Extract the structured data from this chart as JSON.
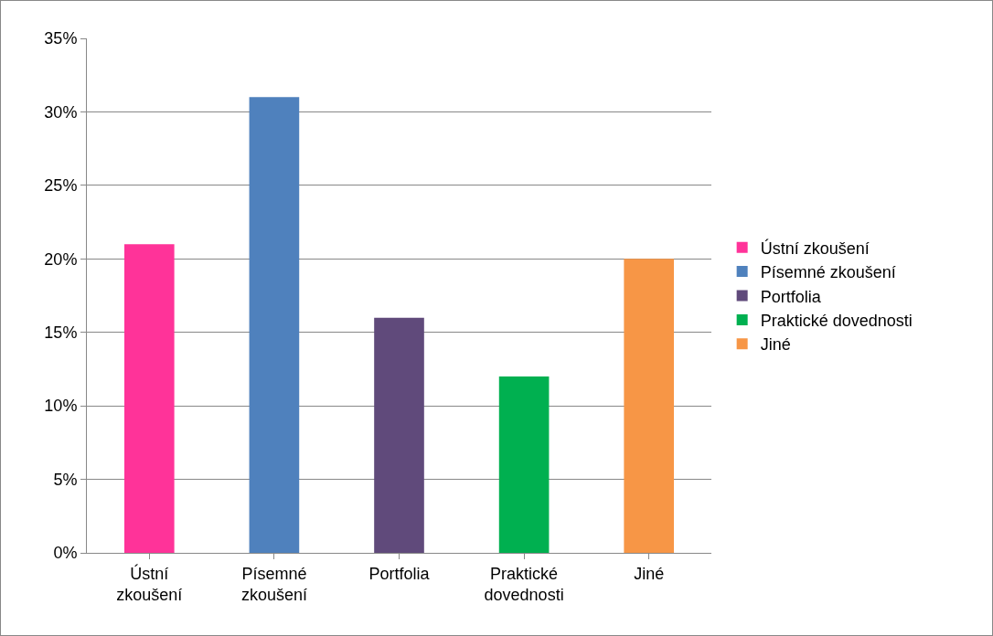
{
  "chart_data": {
    "type": "bar",
    "categories": [
      "Ústní zkoušení",
      "Písemné zkoušení",
      "Portfolia",
      "Praktické dovednosti",
      "Jiné"
    ],
    "series": [
      {
        "name": "Ústní zkoušení",
        "color": "#ff3399",
        "values": [
          21,
          null,
          null,
          null,
          null
        ]
      },
      {
        "name": "Písemné zkoušení",
        "color": "#4f81bd",
        "values": [
          null,
          31,
          null,
          null,
          null
        ]
      },
      {
        "name": "Portfolia",
        "color": "#604a7b",
        "values": [
          null,
          null,
          16,
          null,
          null
        ]
      },
      {
        "name": "Praktické dovednosti",
        "color": "#00b050",
        "values": [
          null,
          null,
          null,
          12,
          null
        ]
      },
      {
        "name": "Jiné",
        "color": "#f79646",
        "values": [
          null,
          null,
          null,
          null,
          20
        ]
      }
    ],
    "ylim": [
      0,
      35
    ],
    "yticks": [
      {
        "value": 0,
        "label": "0%"
      },
      {
        "value": 5,
        "label": "5%"
      },
      {
        "value": 10,
        "label": "10%"
      },
      {
        "value": 15,
        "label": "15%"
      },
      {
        "value": 20,
        "label": "20%"
      },
      {
        "value": 25,
        "label": "25%"
      },
      {
        "value": 30,
        "label": "30%"
      },
      {
        "value": 35,
        "label": "35%"
      }
    ],
    "grid": "y",
    "legend": "right"
  }
}
